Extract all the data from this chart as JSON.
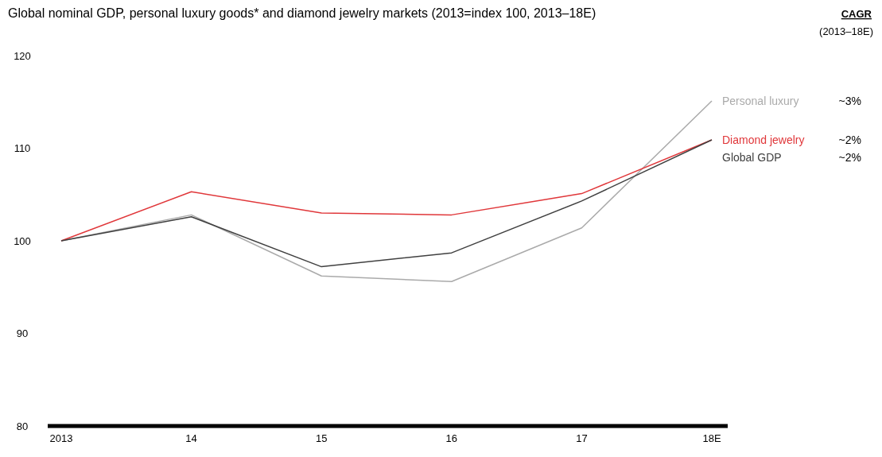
{
  "chart_data": {
    "type": "line",
    "title": "Global nominal GDP, personal luxury goods* and diamond jewelry markets (2013=index 100, 2013–18E)",
    "categories": [
      "2013",
      "14",
      "15",
      "16",
      "17",
      "18E"
    ],
    "series": [
      {
        "name": "Personal luxury",
        "color": "#aaaaaa",
        "values": [
          100,
          102.8,
          96.2,
          95.6,
          101.4,
          115.1
        ]
      },
      {
        "name": "Diamond jewelry",
        "color": "#e0373a",
        "values": [
          100,
          105.3,
          103.0,
          102.8,
          105.1,
          110.9
        ]
      },
      {
        "name": "Global GDP",
        "color": "#404040",
        "values": [
          100,
          102.6,
          97.2,
          98.7,
          104.3,
          110.9
        ]
      }
    ],
    "ylim": [
      80,
      120
    ],
    "yticks": [
      80,
      90,
      100,
      110,
      120
    ],
    "annotations": [
      "CAGR",
      "(2013–18E)",
      "~3%",
      "~2%",
      "~2%"
    ]
  }
}
